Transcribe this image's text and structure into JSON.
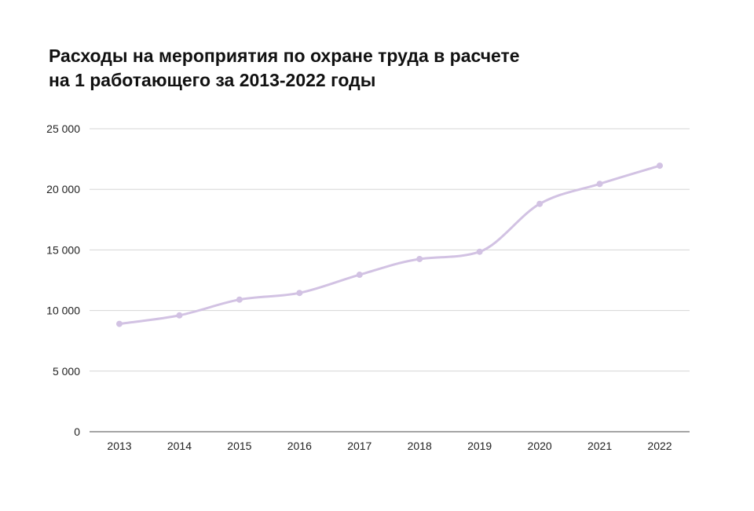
{
  "chart_data": {
    "type": "line",
    "title_lines": [
      "Расходы на мероприятия по охране труда в расчете",
      "на 1 работающего за 2013-2022 годы"
    ],
    "xlabel": "",
    "ylabel": "",
    "categories": [
      "2013",
      "2014",
      "2015",
      "2016",
      "2017",
      "2018",
      "2019",
      "2020",
      "2021",
      "2022"
    ],
    "series": [
      {
        "values": [
          8900,
          9600,
          10900,
          11450,
          12950,
          14250,
          14850,
          18800,
          20450,
          21950
        ],
        "color": "#d2c2e3"
      }
    ],
    "ylim": [
      0,
      25000
    ],
    "yticks": [
      0,
      5000,
      10000,
      15000,
      20000,
      25000
    ],
    "ytick_labels": [
      "0",
      "5 000",
      "10 000",
      "15 000",
      "20 000",
      "25 000"
    ],
    "grid": true,
    "smooth": true,
    "legend": "none"
  }
}
